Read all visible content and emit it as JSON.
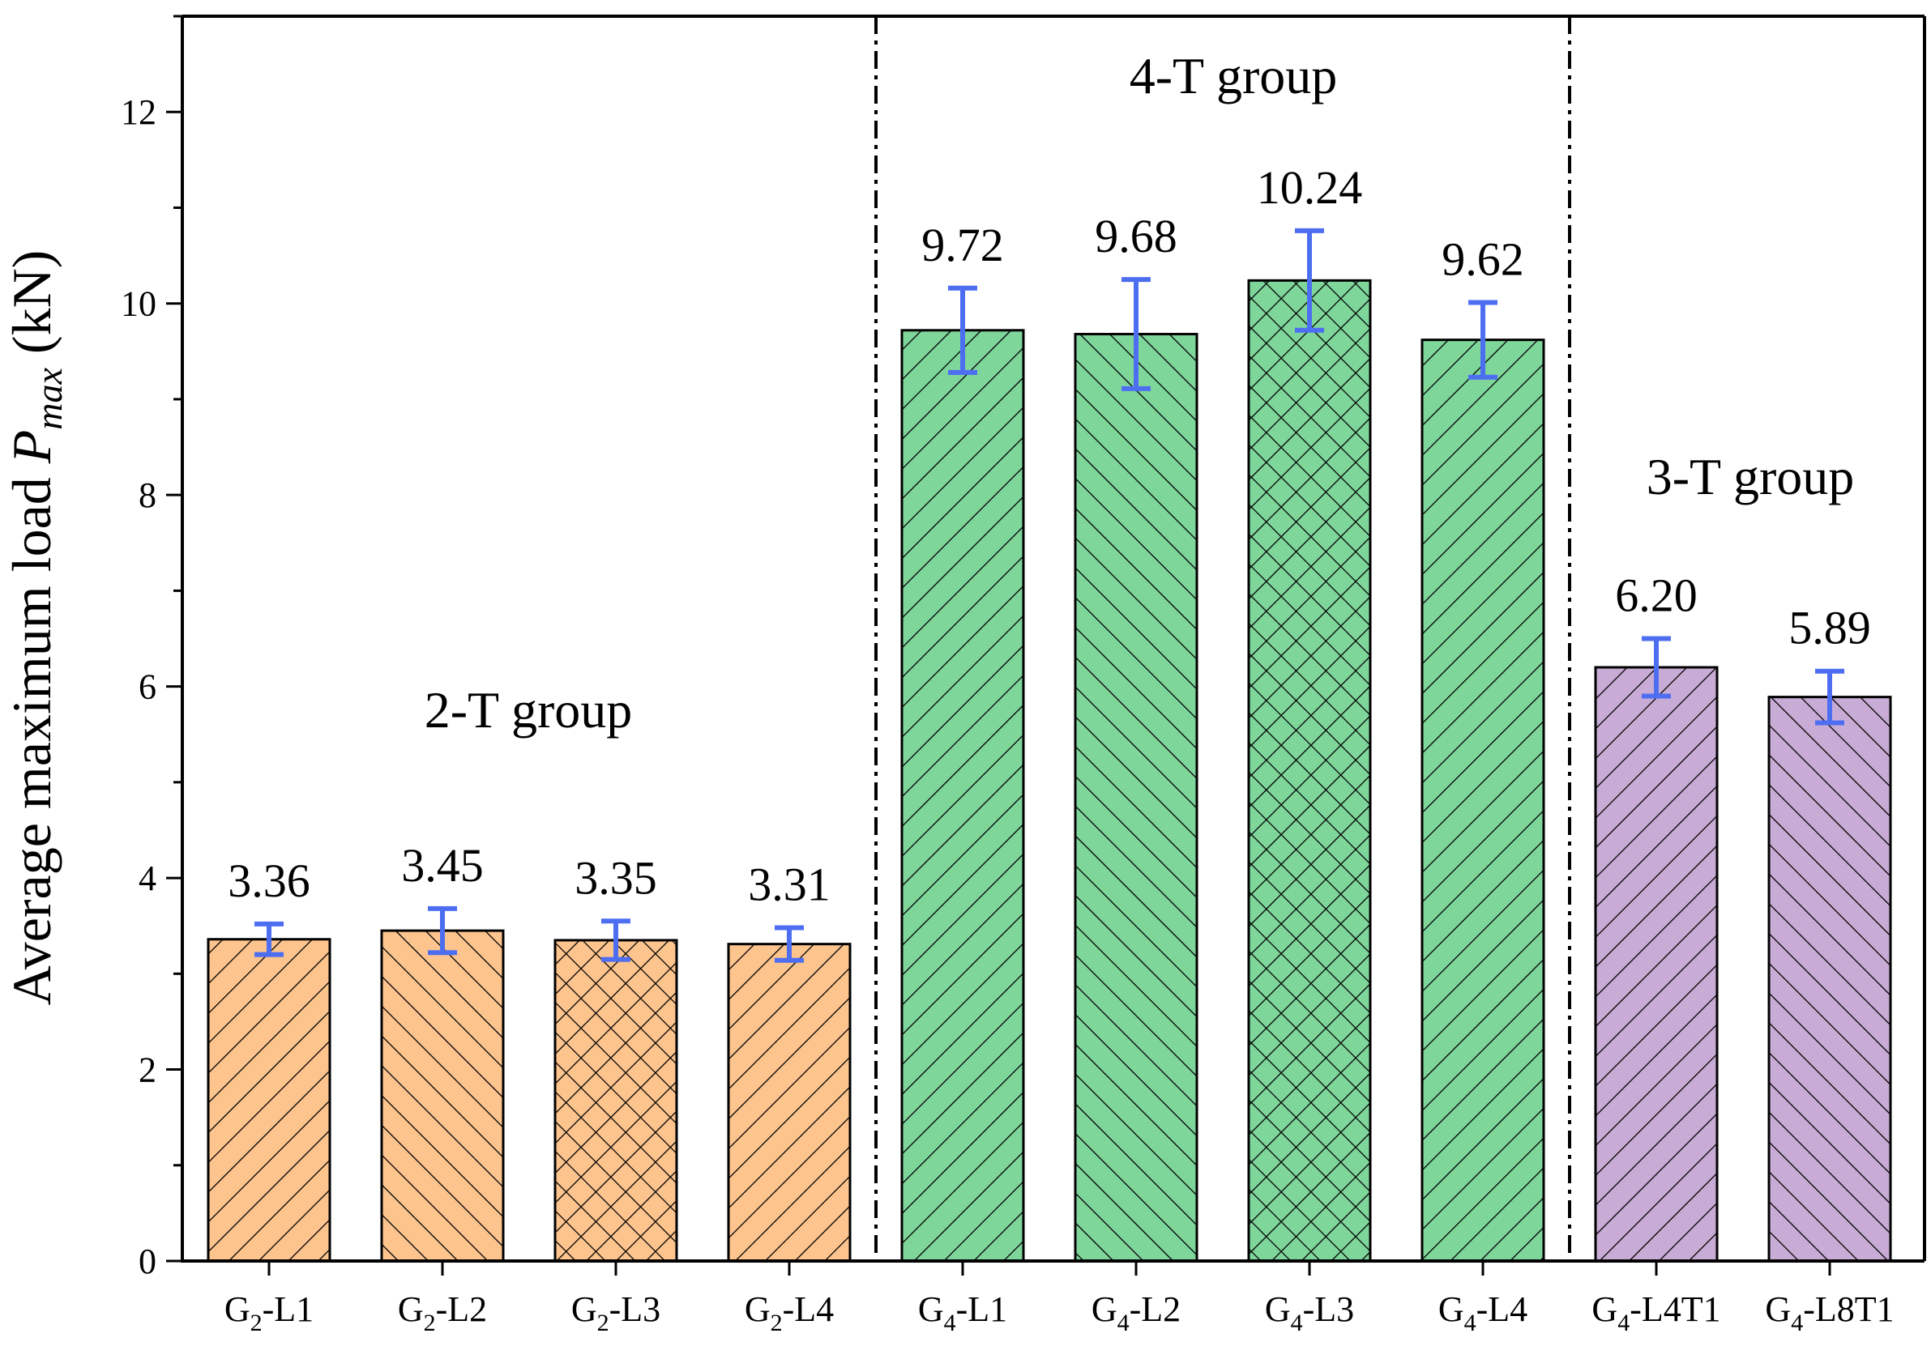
{
  "chart_data": {
    "type": "bar",
    "title": "",
    "xlabel": "",
    "ylabel": {
      "prefix": "Average maximum load ",
      "symbol": "P",
      "subscript": "max",
      "suffix": " (kN)"
    },
    "ylim": [
      0,
      13
    ],
    "yticks": [
      0,
      2,
      4,
      6,
      8,
      10,
      12
    ],
    "grid": false,
    "legend": "none",
    "categories": [
      {
        "base": "G",
        "sub": "2",
        "rest": "-L1"
      },
      {
        "base": "G",
        "sub": "2",
        "rest": "-L2"
      },
      {
        "base": "G",
        "sub": "2",
        "rest": "-L3"
      },
      {
        "base": "G",
        "sub": "2",
        "rest": "-L4"
      },
      {
        "base": "G",
        "sub": "4",
        "rest": "-L1"
      },
      {
        "base": "G",
        "sub": "4",
        "rest": "-L2"
      },
      {
        "base": "G",
        "sub": "4",
        "rest": "-L3"
      },
      {
        "base": "G",
        "sub": "4",
        "rest": "-L4"
      },
      {
        "base": "G",
        "sub": "4",
        "rest": "-L4T1"
      },
      {
        "base": "G",
        "sub": "4",
        "rest": "-L8T1"
      }
    ],
    "values": [
      3.36,
      3.45,
      3.35,
      3.31,
      9.72,
      9.68,
      10.24,
      9.62,
      6.2,
      5.89
    ],
    "value_labels": [
      "3.36",
      "3.45",
      "3.35",
      "3.31",
      "9.72",
      "9.68",
      "10.24",
      "9.62",
      "6.20",
      "5.89"
    ],
    "error": [
      0.16,
      0.23,
      0.2,
      0.17,
      0.44,
      0.57,
      0.52,
      0.39,
      0.3,
      0.27
    ],
    "error_bar_color": "#4e6ef2",
    "patterns": [
      "fwd",
      "back",
      "cross",
      "fwd",
      "fwd",
      "back",
      "cross",
      "fwd",
      "fwd",
      "back"
    ],
    "groups": [
      {
        "label": "2-T group",
        "color": "#fdc48e",
        "bar_indices": [
          0,
          1,
          2,
          3
        ]
      },
      {
        "label": "4-T group",
        "color": "#7fd69b",
        "bar_indices": [
          4,
          5,
          6,
          7
        ]
      },
      {
        "label": "3-T group",
        "color": "#c9acd6",
        "bar_indices": [
          8,
          9
        ]
      }
    ]
  }
}
